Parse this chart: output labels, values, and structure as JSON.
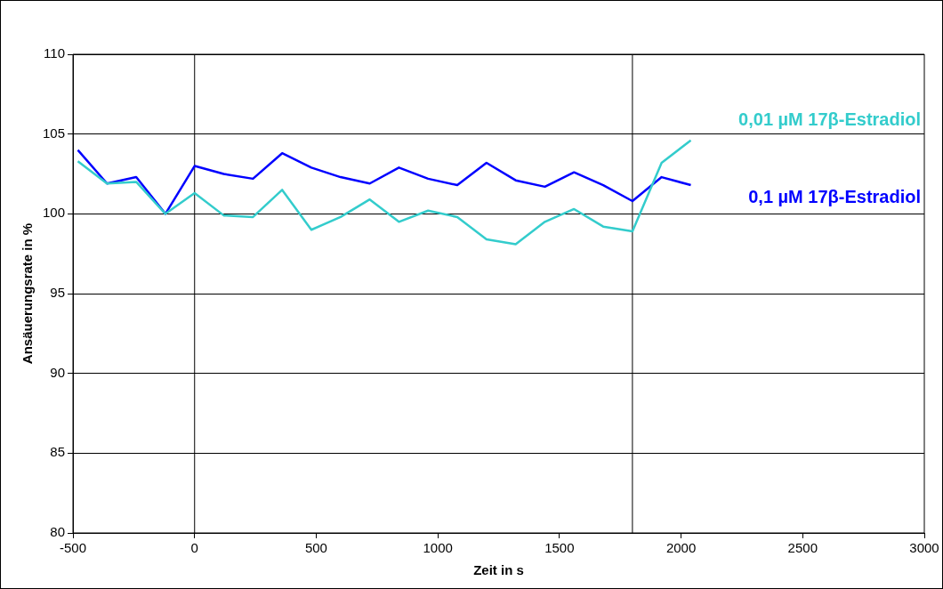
{
  "chart_data": {
    "type": "line",
    "xlabel": "Zeit in s",
    "ylabel": "Ansäuerungsrate in %",
    "x": [
      -480,
      -360,
      -240,
      -120,
      0,
      120,
      240,
      360,
      480,
      600,
      720,
      840,
      960,
      1080,
      1200,
      1320,
      1440,
      1560,
      1680,
      1800,
      1920,
      2040
    ],
    "series": [
      {
        "name": "0,01 µM 17β-Estradiol",
        "color": "#33cccc",
        "values": [
          103.3,
          101.9,
          102.0,
          100.0,
          101.3,
          99.9,
          99.8,
          101.5,
          99.0,
          99.8,
          100.9,
          99.5,
          100.2,
          99.8,
          98.4,
          98.1,
          99.5,
          100.3,
          99.2,
          98.9,
          103.2,
          104.6
        ]
      },
      {
        "name": "0,1 µM 17β-Estradiol",
        "color": "#0000ff",
        "values": [
          104.0,
          101.9,
          102.3,
          100.0,
          103.0,
          102.5,
          102.2,
          103.8,
          102.9,
          102.3,
          101.9,
          102.9,
          102.2,
          101.8,
          103.2,
          102.1,
          101.7,
          102.6,
          101.8,
          100.8,
          102.3,
          101.8
        ]
      }
    ],
    "xlim": [
      -500,
      3000
    ],
    "xticks": [
      -500,
      0,
      500,
      1000,
      1500,
      2000,
      2500,
      3000
    ],
    "ylim": [
      80,
      110
    ],
    "yticks": [
      80,
      85,
      90,
      95,
      100,
      105,
      110
    ],
    "grid": "y",
    "legend": false,
    "marker": "none",
    "line_style": "solid",
    "ref_lines": [
      {
        "axis": "x",
        "value": 0,
        "color": "#000000"
      },
      {
        "axis": "x",
        "value": 1800,
        "color": "#000000"
      }
    ]
  }
}
